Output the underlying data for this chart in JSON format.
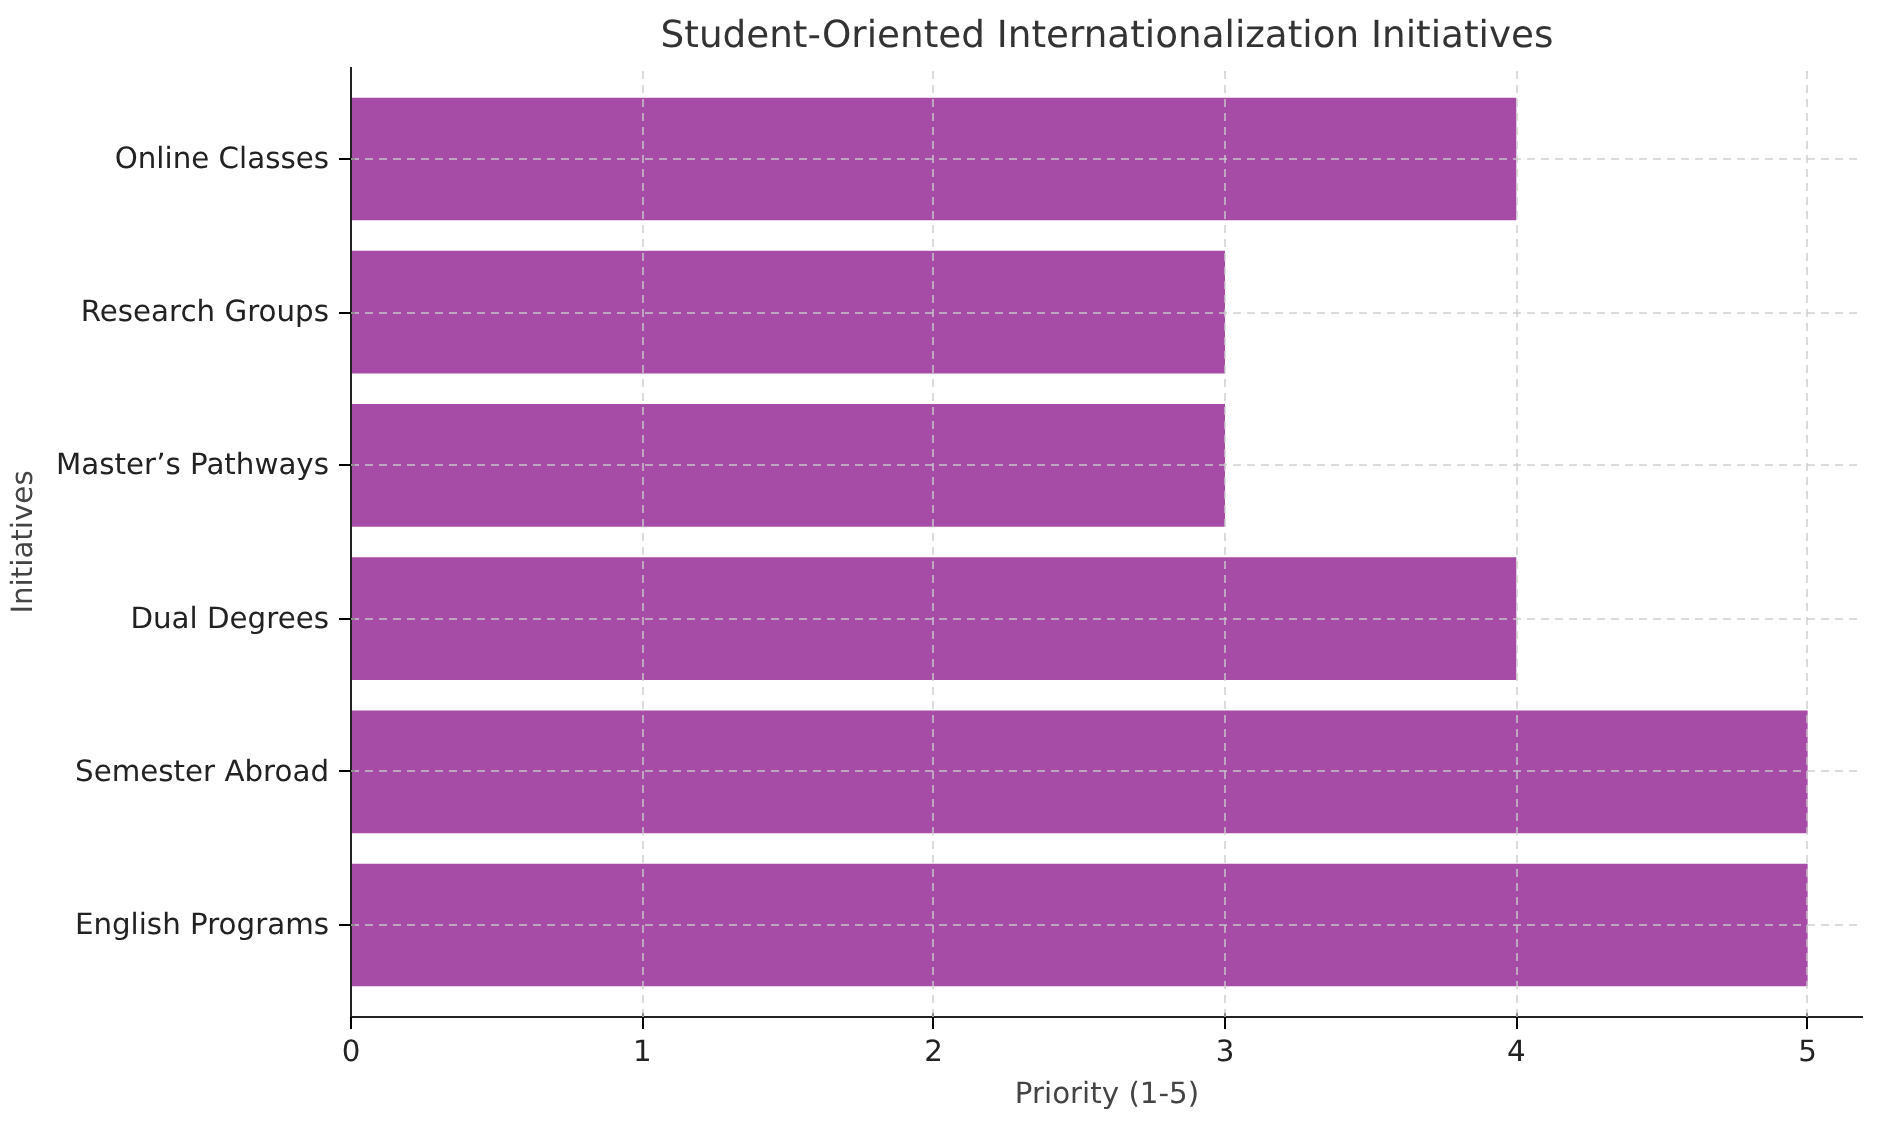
{
  "chart_data": {
    "type": "bar",
    "orientation": "horizontal",
    "title": "Student-Oriented Internationalization Initiatives",
    "xlabel": "Priority (1-5)",
    "ylabel": "Initiatives",
    "categories": [
      "Online Classes",
      "Research Groups",
      "Master’s Pathways",
      "Dual Degrees",
      "Semester Abroad",
      "English Programs"
    ],
    "values": [
      4,
      3,
      3,
      4,
      5,
      5
    ],
    "color": "#a64ca6",
    "xlim": [
      0,
      5.19
    ],
    "xticks": [
      0,
      1,
      2,
      3,
      4,
      5
    ],
    "grid": true
  }
}
